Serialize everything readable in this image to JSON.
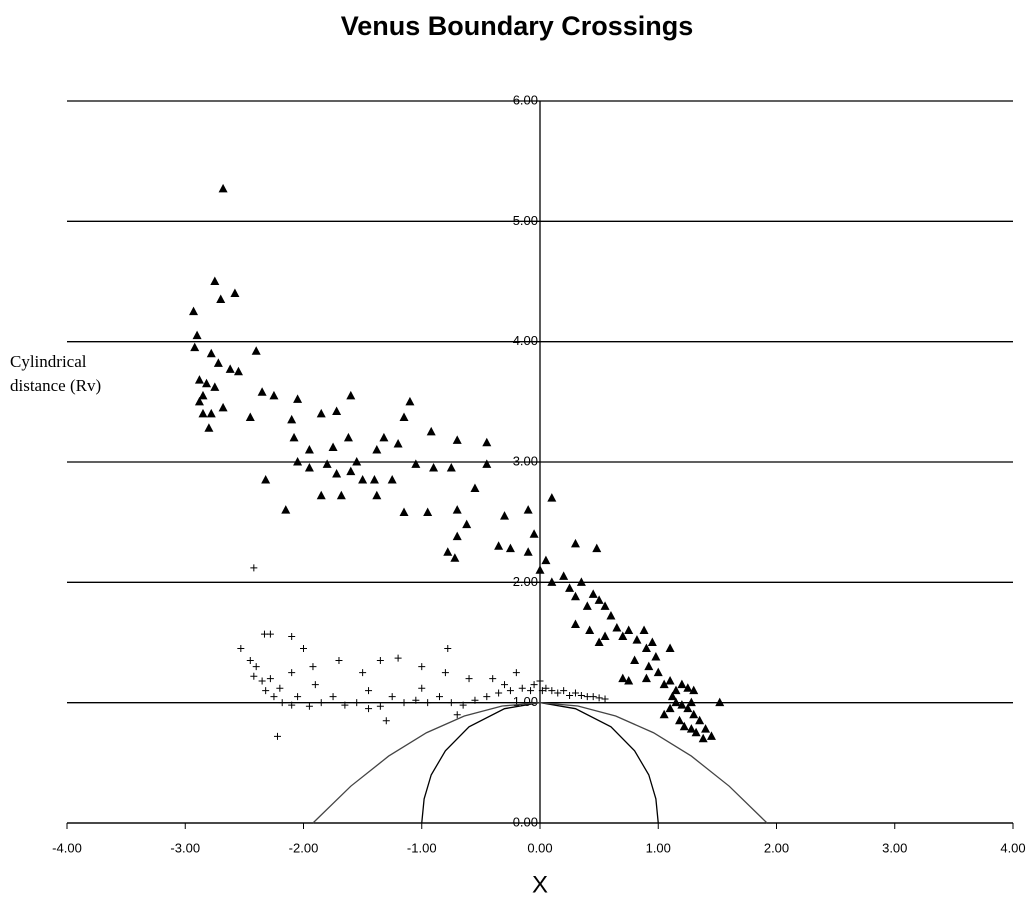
{
  "chart_data": {
    "type": "scatter",
    "title": "Venus Boundary Crossings",
    "x_label": "X",
    "y_label": "Cylindrical distance (Rv)",
    "xlim": [
      -4,
      4
    ],
    "ylim": [
      0,
      6
    ],
    "xticks": [
      {
        "value": -4,
        "label": "-4.00"
      },
      {
        "value": -3,
        "label": "-3.00"
      },
      {
        "value": -2,
        "label": "-2.00"
      },
      {
        "value": -1,
        "label": "-1.00"
      },
      {
        "value": 0,
        "label": "0.00"
      },
      {
        "value": 1,
        "label": "1.00"
      },
      {
        "value": 2,
        "label": "2.00"
      },
      {
        "value": 3,
        "label": "3.00"
      },
      {
        "value": 4,
        "label": "4.00"
      }
    ],
    "yticks": [
      {
        "value": 0,
        "label": "0.00"
      },
      {
        "value": 1,
        "label": "1.00"
      },
      {
        "value": 2,
        "label": "2.00"
      },
      {
        "value": 3,
        "label": "3.00"
      },
      {
        "value": 4,
        "label": "4.00"
      },
      {
        "value": 5,
        "label": "5.00"
      },
      {
        "value": 6,
        "label": "6.00"
      }
    ],
    "grid": true,
    "series": [
      {
        "marker": "triangle",
        "color": "#000000",
        "x": [
          -2.68,
          -2.75,
          -2.7,
          -2.58,
          -2.93,
          -2.9,
          -2.92,
          -2.78,
          -2.72,
          -2.62,
          -2.55,
          -2.4,
          -2.88,
          -2.82,
          -2.75,
          -2.85,
          -2.88,
          -2.78,
          -2.85,
          -2.8,
          -2.68,
          -2.45,
          -2.35,
          -2.25,
          -2.05,
          -2.1,
          -1.85,
          -1.72,
          -1.6,
          -1.1,
          -1.15,
          -0.92,
          -0.7,
          -0.45,
          -2.08,
          -1.95,
          -1.75,
          -1.62,
          -1.55,
          -1.38,
          -1.32,
          -1.2,
          -2.05,
          -1.95,
          -1.8,
          -1.72,
          -1.6,
          -1.5,
          -1.4,
          -1.25,
          -1.05,
          -0.9,
          -0.75,
          -0.45,
          -2.32,
          -1.85,
          -1.68,
          -1.38,
          -2.15,
          -1.15,
          -0.95,
          -0.7,
          -0.55,
          -0.62,
          -0.7,
          -0.3,
          -0.1,
          0.1,
          -0.78,
          -0.72,
          -0.35,
          -0.25,
          -0.1,
          -0.05,
          0.3,
          0.48,
          0.0,
          0.05,
          0.1,
          0.2,
          0.25,
          0.3,
          0.35,
          0.4,
          0.45,
          0.5,
          0.55,
          0.6,
          0.3,
          0.42,
          0.5,
          0.55,
          0.65,
          0.7,
          0.75,
          0.82,
          0.88,
          0.9,
          0.95,
          0.98,
          0.92,
          1.1,
          0.8,
          0.7,
          0.75,
          0.9,
          1.0,
          1.05,
          1.1,
          1.15,
          1.2,
          1.25,
          1.3,
          1.15,
          1.1,
          1.05,
          1.2,
          1.25,
          1.3,
          1.35,
          1.18,
          1.22,
          1.28,
          1.32,
          1.4,
          1.45,
          1.38,
          1.52,
          1.12,
          1.28
        ],
        "y": [
          5.27,
          4.5,
          4.35,
          4.4,
          4.25,
          4.05,
          3.95,
          3.9,
          3.82,
          3.77,
          3.75,
          3.92,
          3.68,
          3.65,
          3.62,
          3.55,
          3.5,
          3.4,
          3.4,
          3.28,
          3.45,
          3.37,
          3.58,
          3.55,
          3.52,
          3.35,
          3.4,
          3.42,
          3.55,
          3.5,
          3.37,
          3.25,
          3.18,
          3.16,
          3.2,
          3.1,
          3.12,
          3.2,
          3.0,
          3.1,
          3.2,
          3.15,
          3.0,
          2.95,
          2.98,
          2.9,
          2.92,
          2.85,
          2.85,
          2.85,
          2.98,
          2.95,
          2.95,
          2.98,
          2.85,
          2.72,
          2.72,
          2.72,
          2.6,
          2.58,
          2.58,
          2.6,
          2.78,
          2.48,
          2.38,
          2.55,
          2.6,
          2.7,
          2.25,
          2.2,
          2.3,
          2.28,
          2.25,
          2.4,
          2.32,
          2.28,
          2.1,
          2.18,
          2.0,
          2.05,
          1.95,
          1.88,
          2.0,
          1.8,
          1.9,
          1.85,
          1.8,
          1.72,
          1.65,
          1.6,
          1.5,
          1.55,
          1.62,
          1.55,
          1.6,
          1.52,
          1.6,
          1.45,
          1.5,
          1.38,
          1.3,
          1.45,
          1.35,
          1.2,
          1.18,
          1.2,
          1.25,
          1.15,
          1.18,
          1.1,
          1.15,
          1.12,
          1.1,
          1.0,
          0.95,
          0.9,
          0.98,
          0.95,
          0.9,
          0.85,
          0.85,
          0.8,
          0.78,
          0.75,
          0.78,
          0.72,
          0.7,
          1.0,
          1.05,
          1.0
        ]
      },
      {
        "marker": "plus",
        "color": "#000000",
        "x": [
          -2.42,
          -2.33,
          -2.28,
          -2.1,
          -2.53,
          -2.45,
          -2.4,
          -2.42,
          -2.35,
          -2.28,
          -2.2,
          -2.32,
          -2.25,
          -2.18,
          -2.1,
          -2.05,
          -1.95,
          -1.85,
          -1.75,
          -1.65,
          -1.55,
          -1.45,
          -1.35,
          -1.25,
          -1.15,
          -1.05,
          -0.95,
          -0.85,
          -0.75,
          -0.65,
          -0.55,
          -0.45,
          -0.35,
          -0.25,
          -0.15,
          -0.05,
          0.0,
          0.05,
          0.1,
          0.15,
          0.2,
          0.25,
          0.3,
          0.35,
          0.4,
          0.45,
          0.5,
          0.55,
          -2.22,
          -1.92,
          -1.7,
          -1.35,
          -1.2,
          -1.0,
          -0.78,
          -0.8,
          -0.6,
          -0.4,
          -0.3,
          -1.5,
          -1.9,
          -2.1,
          -0.2,
          -0.08,
          0.02,
          -1.45,
          -1.0,
          -0.7,
          -1.3,
          -2.0
        ],
        "y": [
          2.12,
          1.57,
          1.57,
          1.55,
          1.45,
          1.35,
          1.3,
          1.22,
          1.18,
          1.2,
          1.12,
          1.1,
          1.05,
          1.0,
          0.98,
          1.05,
          0.97,
          1.0,
          1.05,
          0.98,
          1.0,
          0.95,
          0.97,
          1.05,
          1.0,
          1.02,
          1.0,
          1.05,
          1.0,
          0.98,
          1.02,
          1.05,
          1.08,
          1.1,
          1.12,
          1.15,
          1.18,
          1.12,
          1.1,
          1.08,
          1.1,
          1.06,
          1.08,
          1.06,
          1.05,
          1.05,
          1.04,
          1.03,
          0.72,
          1.3,
          1.35,
          1.35,
          1.37,
          1.3,
          1.45,
          1.25,
          1.2,
          1.2,
          1.15,
          1.25,
          1.15,
          1.25,
          1.25,
          1.1,
          1.1,
          1.1,
          1.12,
          0.9,
          0.85,
          1.45
        ]
      },
      {
        "type": "line",
        "color": "#000000",
        "x": [
          -1,
          -0.98,
          -0.92,
          -0.8,
          -0.6,
          -0.3,
          0,
          0.3,
          0.6,
          0.8,
          0.92,
          0.98,
          1
        ],
        "y": [
          0,
          0.2,
          0.4,
          0.6,
          0.8,
          0.95,
          1,
          0.95,
          0.8,
          0.6,
          0.4,
          0.2,
          0
        ]
      },
      {
        "type": "line",
        "color": "#444444",
        "x": [
          -1.92,
          -1.6,
          -1.28,
          -0.96,
          -0.64,
          -0.32,
          0,
          0.32,
          0.64,
          0.96,
          1.28,
          1.6,
          1.92
        ],
        "y": [
          0,
          0.306,
          0.556,
          0.75,
          0.889,
          0.972,
          1,
          0.972,
          0.889,
          0.75,
          0.556,
          0.306,
          0
        ]
      }
    ]
  }
}
